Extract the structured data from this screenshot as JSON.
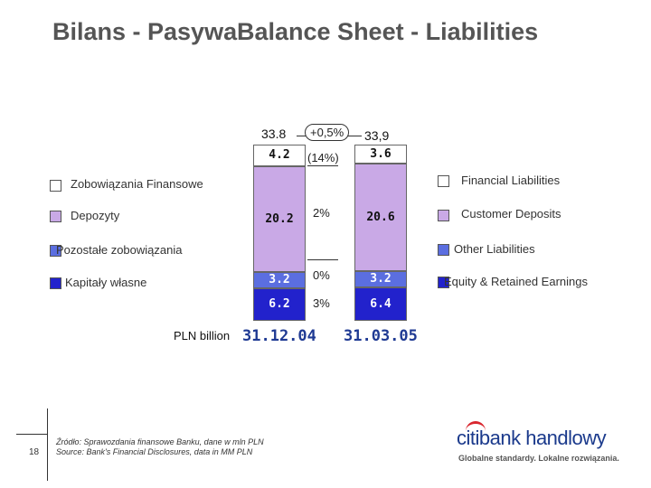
{
  "title_pl": "Bilans - Pasywa",
  "title_en": "Balance Sheet - Liabilities",
  "colors": {
    "financial": "#ffffff",
    "deposits": "#c9a9e6",
    "other": "#5b6ee0",
    "equity": "#2222cc"
  },
  "chart_data": {
    "type": "bar",
    "stacked": true,
    "unit_label": "PLN billion",
    "categories": [
      "31.12.04",
      "31.03.05"
    ],
    "totals": [
      "33.8",
      "33,9"
    ],
    "total_change": "+0,5%",
    "series": [
      {
        "name": "Financial Liabilities",
        "name_pl": "Zobowiązania Finansowe",
        "values": [
          4.2,
          3.6
        ],
        "labels": [
          "4.2",
          "3.6"
        ],
        "change": "(14%)",
        "color": "#ffffff"
      },
      {
        "name": "Customer Deposits",
        "name_pl": "Depozyty",
        "values": [
          20.2,
          20.6
        ],
        "labels": [
          "20.2",
          "20.6"
        ],
        "change": "2%",
        "color": "#c9a9e6"
      },
      {
        "name": "Other Liabilities",
        "name_pl": "Pozostałe zobowiązania",
        "values": [
          3.2,
          3.2
        ],
        "labels": [
          "3.2",
          "3.2"
        ],
        "change": "0%",
        "color": "#5b6ee0"
      },
      {
        "name": "Equity & Retained Earnings",
        "name_pl": "Kapitały własne",
        "values": [
          6.2,
          6.4
        ],
        "labels": [
          "6.2",
          "6.4"
        ],
        "change": "3%",
        "color": "#2222cc"
      }
    ]
  },
  "footer": {
    "page": "18",
    "source_pl": "Źródło: Sprawozdania finansowe Banku, dane w mln PLN",
    "source_en": "Source: Bank's Financial Disclosures, data in MM PLN"
  },
  "logo": {
    "text_citi": "citi",
    "text_rest": "bank handlowy",
    "tagline": "Globalne standardy. Lokalne rozwiązania."
  }
}
